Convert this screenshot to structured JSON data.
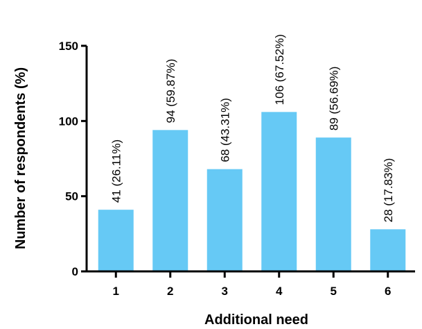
{
  "chart_data": {
    "type": "bar",
    "xlabel": "Additional need",
    "ylabel": "Number of respondents (%)",
    "categories": [
      "1",
      "2",
      "3",
      "4",
      "5",
      "6"
    ],
    "values": [
      41,
      94,
      68,
      106,
      89,
      28
    ],
    "data_labels": [
      "41 (26.11%)",
      "94 (59.87%)",
      "68 (43.31%)",
      "106 (67.52%)",
      "89 (56.69%)",
      "28 (17.83%)"
    ],
    "ylim": [
      0,
      150
    ],
    "yticks": [
      0,
      50,
      100,
      150
    ],
    "grid": false,
    "legend": "none",
    "colors": {
      "bar": "#66c9f5",
      "axis": "#000000"
    }
  }
}
